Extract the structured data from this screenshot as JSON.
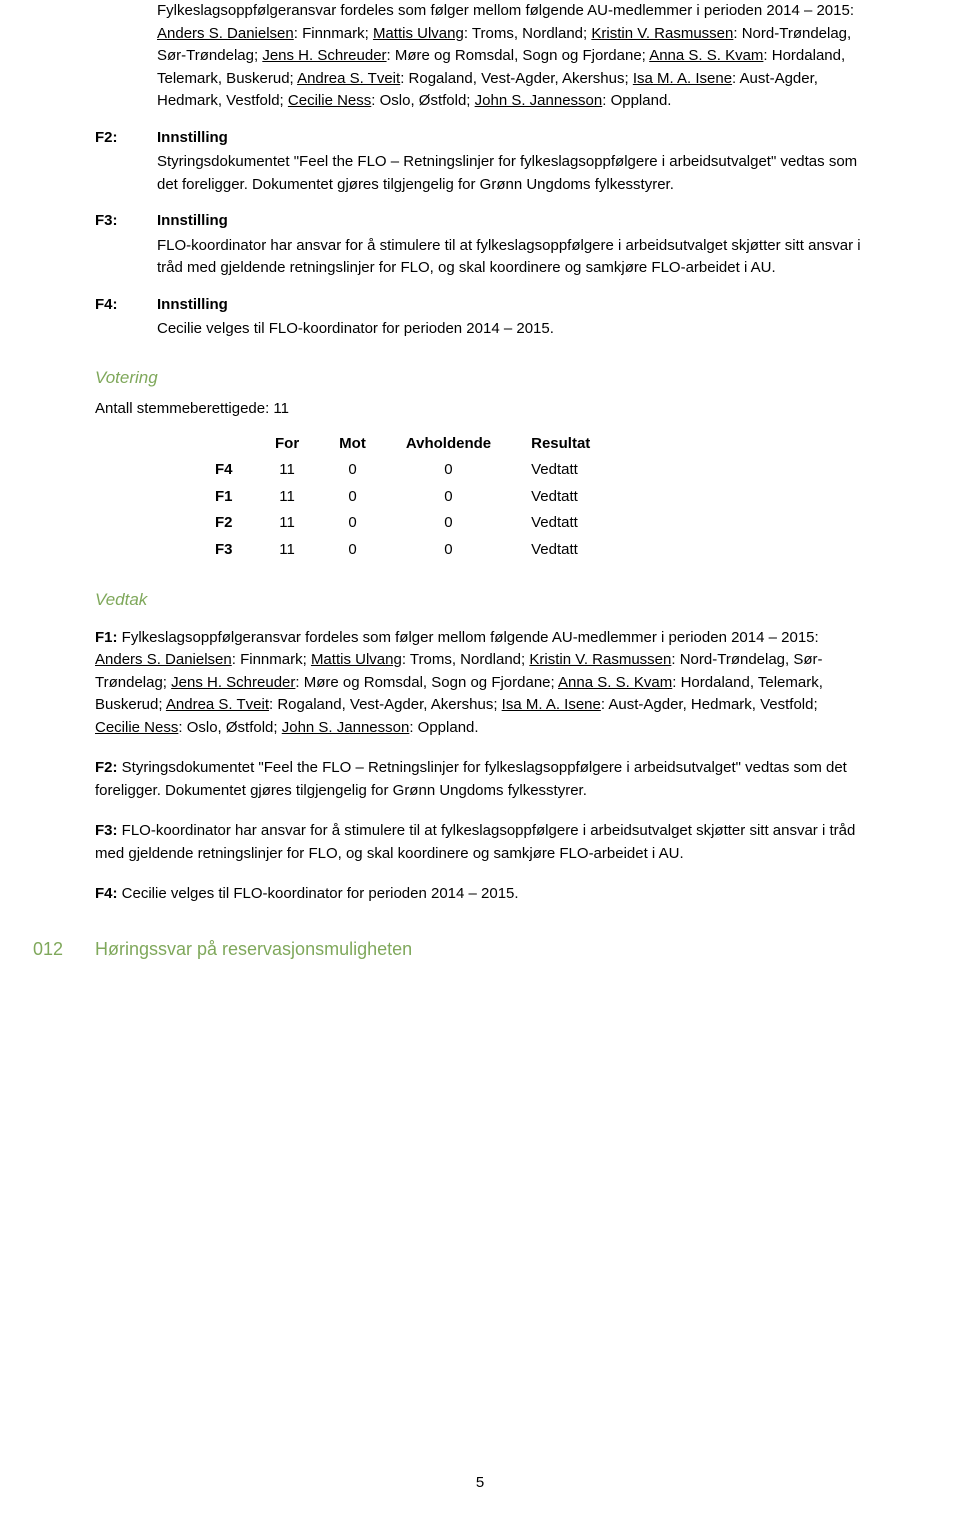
{
  "intro_pre": "Fylkeslagsoppfølgeransvar fordeles som følger mellom følgende AU-medlemmer i perioden 2014 – 2015: ",
  "assignments": [
    {
      "name": "Anders S. Danielsen",
      "area": ": Finnmark; "
    },
    {
      "name": "Mattis Ulvang",
      "area": ": Troms, Nordland; "
    },
    {
      "name": "Kristin V. Rasmussen",
      "area": ": Nord-Trøndelag, Sør-Trøndelag; "
    },
    {
      "name": "Jens H. Schreuder",
      "area": ": Møre og Romsdal, Sogn og Fjordane; "
    },
    {
      "name": "Anna S. S. Kvam",
      "area": ": Hordaland, Telemark, Buskerud; "
    },
    {
      "name": "Andrea S. Tveit",
      "area": ": Rogaland, Vest-Agder, Akershus; "
    },
    {
      "name": "Isa M. A. Isene",
      "area": ": Aust-Agder, Hedmark, Vestfold; "
    },
    {
      "name": "Cecilie Ness",
      "area": ": Oslo, Østfold; "
    },
    {
      "name": "John S. Jannesson",
      "area": ": Oppland."
    }
  ],
  "labels": {
    "F2": "F2:",
    "F3": "F3:",
    "F4": "F4:",
    "innstilling": "Innstilling"
  },
  "f2_text": " Styringsdokumentet \"Feel the FLO – Retningslinjer for fylkeslagsoppfølgere i arbeidsutvalget\" vedtas som det foreligger. Dokumentet gjøres tilgjengelig for Grønn Ungdoms fylkesstyrer.",
  "f3_text": "FLO-koordinator har ansvar for å stimulere til at fylkeslagsoppfølgere i arbeidsutvalget skjøtter sitt ansvar i tråd med gjeldende retningslinjer for FLO, og skal koordinere og samkjøre FLO-arbeidet i AU.",
  "f4_text": "Cecilie velges til FLO-koordinator for perioden 2014 – 2015.",
  "votering": "Votering",
  "antall": "Antall stemmeberettigede: 11",
  "table": {
    "headers": [
      "For",
      "Mot",
      "Avholdende",
      "Resultat"
    ],
    "rows": [
      {
        "label": "F4",
        "for": "11",
        "mot": "0",
        "avh": "0",
        "res": "Vedtatt"
      },
      {
        "label": "F1",
        "for": "11",
        "mot": "0",
        "avh": "0",
        "res": "Vedtatt"
      },
      {
        "label": "F2",
        "for": "11",
        "mot": "0",
        "avh": "0",
        "res": "Vedtatt"
      },
      {
        "label": "F3",
        "for": "11",
        "mot": "0",
        "avh": "0",
        "res": "Vedtatt"
      }
    ]
  },
  "vedtak": "Vedtak",
  "vedtak_f1_prefix": "F1: ",
  "vedtak_f1_pre": "Fylkeslagsoppfølgeransvar fordeles som følger mellom følgende AU-medlemmer i perioden 2014 – 2015: ",
  "vedtak_assignments": [
    {
      "name": "Anders S. Danielsen",
      "area": ": Finnmark; "
    },
    {
      "name": "Mattis Ulvang",
      "area": ": Troms, Nordland; "
    },
    {
      "name": "Kristin V. Rasmussen",
      "area": ": Nord-Trøndelag, Sør-Trøndelag; "
    },
    {
      "name": "Jens H. Schreuder",
      "area": ": Møre og Romsdal, Sogn og Fjordane; "
    },
    {
      "name": "Anna S. S. Kvam",
      "area": ": Hordaland, Telemark, Buskerud; "
    },
    {
      "name": "Andrea S. Tveit",
      "area": ": Rogaland, Vest-Agder, Akershus; "
    },
    {
      "name": "Isa M. A. Isene",
      "area": ": Aust-Agder, Hedmark, Vestfold; "
    },
    {
      "name": "Cecilie Ness",
      "area": ": Oslo, Østfold; "
    },
    {
      "name": "John S. Jannesson",
      "area": ": Oppland."
    }
  ],
  "vedtak_f2_prefix": "F2: ",
  "vedtak_f2_text": "Styringsdokumentet \"Feel the FLO – Retningslinjer for fylkeslagsoppfølgere i arbeidsutvalget\" vedtas som det foreligger. Dokumentet gjøres tilgjengelig for Grønn Ungdoms fylkesstyrer.",
  "vedtak_f3_prefix": "F3: ",
  "vedtak_f3_text": "FLO-koordinator har ansvar for å stimulere til at fylkeslagsoppfølgere i arbeidsutvalget skjøtter sitt ansvar i tråd med gjeldende retningslinjer for FLO, og skal koordinere og samkjøre FLO-arbeidet i AU.",
  "vedtak_f4_prefix": "F4: ",
  "vedtak_f4_text": "Cecilie velges til FLO-koordinator for perioden 2014 – 2015.",
  "case": {
    "num": "012",
    "title": "Høringssvar på reservasjonsmuligheten"
  },
  "pagenum": "5"
}
